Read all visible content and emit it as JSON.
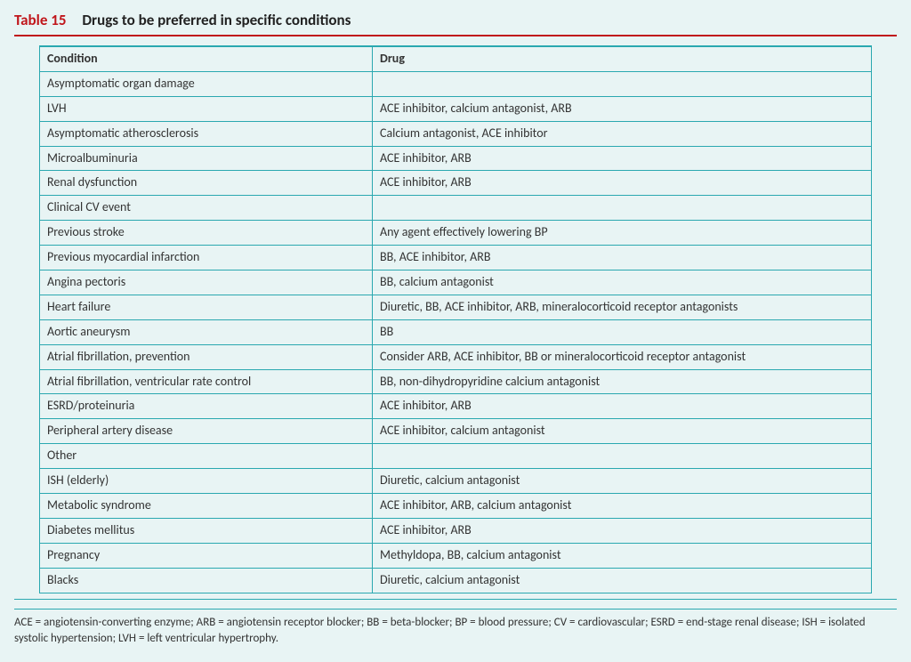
{
  "header": {
    "label": "Table 15",
    "title": "Drugs to be preferred in specific conditions"
  },
  "columns": {
    "condition": "Condition",
    "drug": "Drug"
  },
  "sections": [
    {
      "name": "Asymptomatic organ damage",
      "rows": [
        {
          "condition": "LVH",
          "drug": "ACE inhibitor, calcium antagonist, ARB"
        },
        {
          "condition": "Asymptomatic atherosclerosis",
          "drug": "Calcium antagonist, ACE inhibitor"
        },
        {
          "condition": "Microalbuminuria",
          "drug": "ACE inhibitor, ARB"
        },
        {
          "condition": "Renal dysfunction",
          "drug": "ACE inhibitor, ARB"
        }
      ]
    },
    {
      "name": "Clinical CV event",
      "rows": [
        {
          "condition": "Previous stroke",
          "drug": "Any agent effectively lowering BP"
        },
        {
          "condition": "Previous myocardial infarction",
          "drug": "BB, ACE inhibitor, ARB"
        },
        {
          "condition": "Angina pectoris",
          "drug": "BB, calcium antagonist"
        },
        {
          "condition": "Heart failure",
          "drug": "Diuretic, BB, ACE inhibitor, ARB, mineralocorticoid receptor antagonists"
        },
        {
          "condition": "Aortic aneurysm",
          "drug": "BB"
        },
        {
          "condition": "Atrial fibrillation, prevention",
          "drug": "Consider ARB, ACE inhibitor, BB or mineralocorticoid receptor antagonist"
        },
        {
          "condition": "Atrial fibrillation, ventricular rate control",
          "drug": "BB, non-dihydropyridine calcium antagonist"
        },
        {
          "condition": "ESRD/proteinuria",
          "drug": "ACE inhibitor, ARB"
        },
        {
          "condition": "Peripheral artery disease",
          "drug": "ACE inhibitor, calcium antagonist"
        }
      ]
    },
    {
      "name": "Other",
      "rows": [
        {
          "condition": "ISH (elderly)",
          "drug": "Diuretic, calcium antagonist"
        },
        {
          "condition": "Metabolic syndrome",
          "drug": "ACE inhibitor, ARB, calcium antagonist"
        },
        {
          "condition": "Diabetes mellitus",
          "drug": "ACE inhibitor, ARB"
        },
        {
          "condition": "Pregnancy",
          "drug": "Methyldopa, BB, calcium antagonist"
        },
        {
          "condition": "Blacks",
          "drug": "Diuretic, calcium antagonist"
        }
      ]
    }
  ],
  "footnote": "ACE = angiotensin-converting enzyme; ARB = angiotensin receptor blocker; BB = beta-blocker; BP = blood pressure; CV = cardiovascular; ESRD = end-stage renal disease; ISH = isolated systolic hypertension; LVH = left ventricular hypertrophy.",
  "colors": {
    "accent_red": "#c0151a",
    "teal_border": "#2aa8b0",
    "page_bg": "#e8f4f4"
  }
}
